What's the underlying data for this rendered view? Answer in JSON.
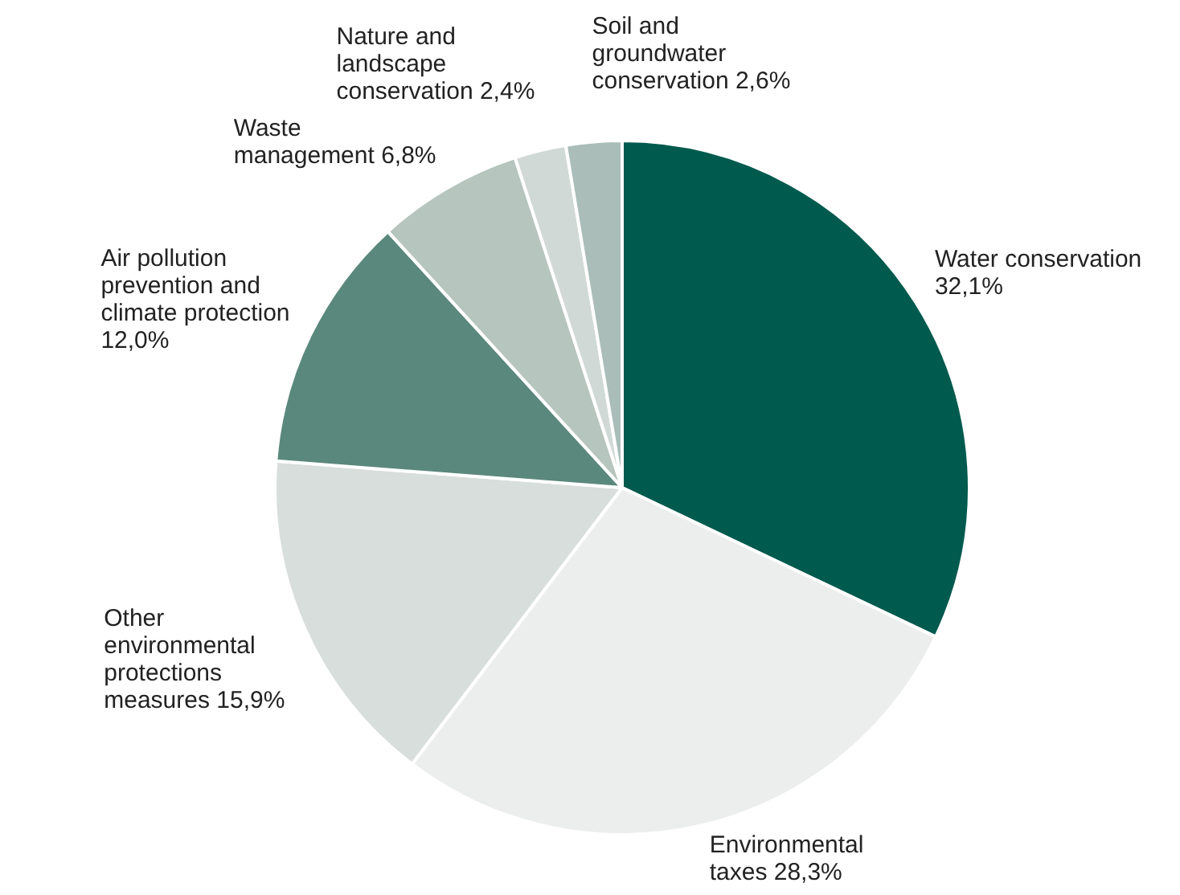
{
  "chart_data": {
    "type": "pie",
    "categories": [
      "Water conservation",
      "Environmental taxes",
      "Other environmental protections measures",
      "Air pollution prevention and climate protection",
      "Waste management",
      "Nature and landscape conservation",
      "Soil and groundwater conservation"
    ],
    "values": [
      32.1,
      28.3,
      15.9,
      12.0,
      6.8,
      2.4,
      2.6
    ],
    "value_labels": [
      "32,1%",
      "28,3%",
      "15,9%",
      "12,0%",
      "6,8%",
      "2,4%",
      "2,6%"
    ],
    "colors": [
      "#005a4e",
      "#eceeed",
      "#d8dedb",
      "#5b887c",
      "#b7c5bf",
      "#d1d9d6",
      "#aabdb8"
    ],
    "legend": false
  }
}
